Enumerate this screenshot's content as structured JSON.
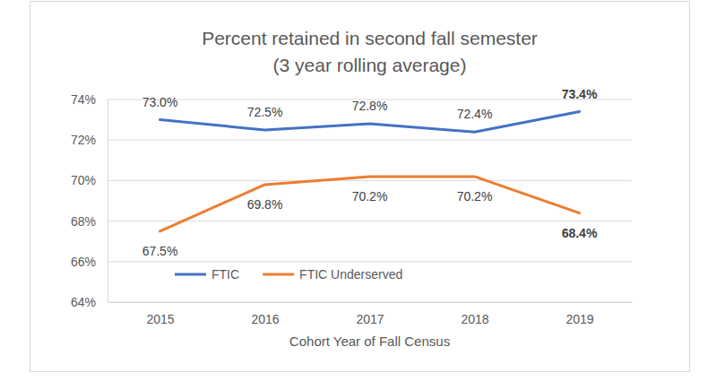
{
  "chart_data": {
    "type": "line",
    "title": "Percent retained in second fall semester",
    "subtitle": "(3 year rolling average)",
    "x_label": "Cohort Year of Fall Census",
    "categories": [
      "2015",
      "2016",
      "2017",
      "2018",
      "2019"
    ],
    "series": [
      {
        "name": "FTIC",
        "color": "#4472c4",
        "values": [
          73.0,
          72.5,
          72.8,
          72.4,
          73.4
        ],
        "value_labels": [
          "73.0%",
          "72.5%",
          "72.8%",
          "72.4%",
          "73.4%"
        ]
      },
      {
        "name": "FTIC Underserved",
        "color": "#ed7d31",
        "values": [
          67.5,
          69.8,
          70.2,
          70.2,
          68.4
        ],
        "value_labels": [
          "67.5%",
          "69.8%",
          "70.2%",
          "70.2%",
          "68.4%"
        ]
      }
    ],
    "ylim": [
      64,
      74
    ],
    "yticks": [
      {
        "value": 64,
        "label": "64%"
      },
      {
        "value": 66,
        "label": "66%"
      },
      {
        "value": 68,
        "label": "68%"
      },
      {
        "value": 70,
        "label": "70%"
      },
      {
        "value": 72,
        "label": "72%"
      },
      {
        "value": 74,
        "label": "74%"
      }
    ],
    "grid": true,
    "legend": "lower left",
    "data_labels": true
  }
}
